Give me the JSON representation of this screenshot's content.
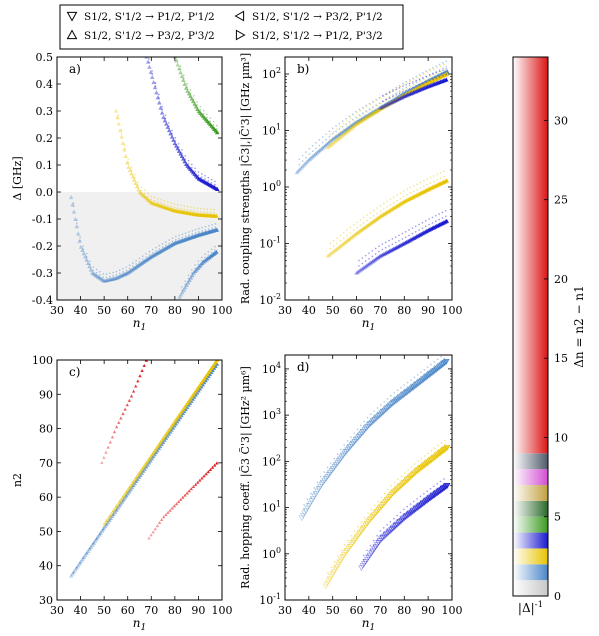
{
  "legend": {
    "entries": [
      {
        "marker": "triangle-down",
        "label": "S1/2, S'1/2 → P1/2, P'1/2"
      },
      {
        "marker": "triangle-left",
        "label": "S1/2, S'1/2 → P3/2, P'1/2"
      },
      {
        "marker": "triangle-up",
        "label": "S1/2, S'1/2 → P3/2, P'3/2"
      },
      {
        "marker": "triangle-right",
        "label": "S1/2, S'1/2 → P1/2, P'3/2"
      }
    ]
  },
  "colors": {
    "dn1": "#4a86c8",
    "dn2": "#e8c400",
    "dn3": "#1a1ad0",
    "dn4": "#3a9a20",
    "dn5": "#d44dd4",
    "dn6": "#c0a040",
    "high": "#dc1414",
    "background_gray": "#f0f0f0"
  },
  "chart_data": [
    {
      "type": "scatter",
      "panel_label": "a)",
      "xlabel": "n1",
      "ylabel": "Δ [GHz]",
      "xlim": [
        30,
        100
      ],
      "ylim": [
        -0.4,
        0.5
      ],
      "xticks": [
        30,
        40,
        50,
        60,
        70,
        80,
        90,
        100
      ],
      "yticks": [
        -0.4,
        -0.3,
        -0.2,
        -0.1,
        0.0,
        0.1,
        0.2,
        0.3,
        0.4,
        0.5
      ],
      "series": [
        {
          "color": "#4a86c8",
          "x": [
            36,
            40,
            45,
            50,
            55,
            60,
            70,
            80,
            90,
            98
          ],
          "y": [
            -0.02,
            -0.2,
            -0.3,
            -0.33,
            -0.32,
            -0.3,
            -0.24,
            -0.19,
            -0.16,
            -0.14
          ]
        },
        {
          "color": "#e8c400",
          "x": [
            55,
            60,
            65,
            70,
            80,
            90,
            98
          ],
          "y": [
            0.3,
            0.1,
            0.0,
            -0.04,
            -0.07,
            -0.085,
            -0.09
          ]
        },
        {
          "color": "#1a1ad0",
          "x": [
            68,
            75,
            80,
            85,
            90,
            98
          ],
          "y": [
            0.5,
            0.28,
            0.18,
            0.1,
            0.05,
            0.01
          ]
        },
        {
          "color": "#4a86c8",
          "x": [
            82,
            88,
            92,
            98
          ],
          "y": [
            -0.39,
            -0.3,
            -0.26,
            -0.22
          ]
        },
        {
          "color": "#3a9a20",
          "x": [
            80,
            85,
            90,
            98
          ],
          "y": [
            0.5,
            0.38,
            0.3,
            0.22
          ]
        }
      ]
    },
    {
      "type": "scatter",
      "panel_label": "b)",
      "xlabel": "n1",
      "ylabel": "Rad. coupling strengths |C̃3|,|C̃'3| [GHz µm³]",
      "xlim": [
        30,
        100
      ],
      "ylim": [
        0.01,
        200
      ],
      "yscale": "log",
      "xticks": [
        30,
        40,
        50,
        60,
        70,
        80,
        90,
        100
      ],
      "yticks": [
        0.01,
        0.1,
        1,
        10,
        100
      ],
      "yticklabels": [
        "10^-2",
        "10^-1",
        "10^0",
        "10^1",
        "10^2"
      ],
      "series": [
        {
          "color": "#4a86c8",
          "x": [
            35,
            40,
            50,
            60,
            70,
            80,
            90,
            98
          ],
          "y": [
            1.8,
            3,
            7,
            14,
            25,
            45,
            75,
            110
          ]
        },
        {
          "color": "#e8c400",
          "x": [
            48,
            60,
            70,
            80,
            90,
            98
          ],
          "y": [
            5,
            13,
            24,
            42,
            70,
            100
          ]
        },
        {
          "color": "#1a1ad0",
          "x": [
            70,
            80,
            90,
            98
          ],
          "y": [
            25,
            40,
            60,
            80
          ]
        },
        {
          "color": "#e8c400",
          "x": [
            48,
            60,
            70,
            80,
            90,
            98
          ],
          "y": [
            0.06,
            0.15,
            0.3,
            0.55,
            0.9,
            1.3
          ]
        },
        {
          "color": "#1a1ad0",
          "x": [
            60,
            70,
            80,
            90,
            98
          ],
          "y": [
            0.03,
            0.06,
            0.1,
            0.17,
            0.25
          ]
        }
      ]
    },
    {
      "type": "scatter",
      "panel_label": "c)",
      "xlabel": "n1",
      "ylabel": "n2",
      "xlim": [
        30,
        100
      ],
      "ylim": [
        30,
        100
      ],
      "xticks": [
        30,
        40,
        50,
        60,
        70,
        80,
        90,
        100
      ],
      "yticks": [
        30,
        40,
        50,
        60,
        70,
        80,
        90,
        100
      ],
      "series": [
        {
          "color": "#4a86c8",
          "x": [
            36,
            50,
            60,
            70,
            80,
            90,
            98
          ],
          "y": [
            37,
            51,
            61,
            71,
            81,
            91,
            99
          ]
        },
        {
          "color": "#e8c400",
          "x": [
            50,
            60,
            70,
            80,
            90,
            98
          ],
          "y": [
            52,
            62,
            72,
            82,
            92,
            100
          ]
        },
        {
          "color": "#dc1414",
          "x": [
            49,
            55,
            62,
            68
          ],
          "y": [
            70,
            80,
            90,
            100
          ]
        },
        {
          "color": "#dc1414",
          "x": [
            69,
            75,
            85,
            98
          ],
          "y": [
            48,
            54,
            61,
            70
          ]
        }
      ]
    },
    {
      "type": "scatter",
      "panel_label": "d)",
      "xlabel": "n1",
      "ylabel": "Rad. hopping coeff. |C̃3 C̃'3| [GHz² µm⁶]",
      "xlim": [
        30,
        100
      ],
      "ylim": [
        0.1,
        20000
      ],
      "yscale": "log",
      "xticks": [
        30,
        40,
        50,
        60,
        70,
        80,
        90,
        100
      ],
      "yticks": [
        0.1,
        1,
        10,
        100,
        1000,
        10000
      ],
      "yticklabels": [
        "10^-1",
        "10^0",
        "10^1",
        "10^2",
        "10^3",
        "10^4"
      ],
      "series": [
        {
          "color": "#4a86c8",
          "x": [
            37,
            45,
            55,
            65,
            75,
            85,
            98
          ],
          "y": [
            6,
            30,
            150,
            600,
            1800,
            4500,
            15000
          ]
        },
        {
          "color": "#e8c400",
          "x": [
            47,
            55,
            65,
            75,
            85,
            98
          ],
          "y": [
            0.2,
            1,
            5,
            20,
            60,
            200
          ]
        },
        {
          "color": "#1a1ad0",
          "x": [
            62,
            70,
            80,
            90,
            98
          ],
          "y": [
            0.5,
            2,
            6,
            15,
            30
          ]
        }
      ]
    },
    {
      "type": "heatmap",
      "colorbar_label": "Δn = n2 − n1",
      "bottom_label": "|Δ|^-1",
      "ticks": [
        0,
        5,
        10,
        15,
        20,
        25,
        30
      ],
      "range": [
        0,
        34
      ],
      "segments": [
        {
          "from": 0,
          "to": 1,
          "color": "#c8c8c8"
        },
        {
          "from": 1,
          "to": 2,
          "color": "#4a86c8"
        },
        {
          "from": 2,
          "to": 3,
          "color": "#e8c400"
        },
        {
          "from": 3,
          "to": 4,
          "color": "#1a1ad0"
        },
        {
          "from": 4,
          "to": 5,
          "color": "#3a9a20"
        },
        {
          "from": 5,
          "to": 6,
          "color": "#2a6a2a"
        },
        {
          "from": 6,
          "to": 7,
          "color": "#c0a040"
        },
        {
          "from": 7,
          "to": 8,
          "color": "#d44dd4"
        },
        {
          "from": 8,
          "to": 9,
          "color": "#505a6a"
        },
        {
          "from": 9,
          "to": 34,
          "color": "#dc1414"
        }
      ]
    }
  ]
}
